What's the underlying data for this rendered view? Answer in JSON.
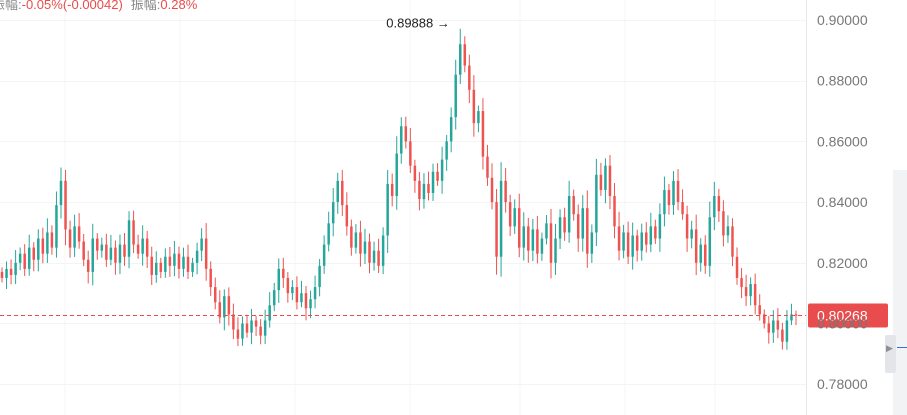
{
  "info_bar": {
    "change_label": "振幅:",
    "change_value": "-0.05%(-0.00042)",
    "amplitude_label": "振幅:",
    "amplitude_value": "0.28%"
  },
  "chart_data": {
    "type": "candlestick",
    "ylim": [
      0.774,
      0.905
    ],
    "y_ticks": [
      "0.90000",
      "0.88000",
      "0.86000",
      "0.84000",
      "0.82000",
      "0.80000",
      "0.78000"
    ],
    "y_tick_values": [
      0.9,
      0.88,
      0.86,
      0.84,
      0.82,
      0.8,
      0.78
    ],
    "grid": true,
    "current_price": {
      "label": "0.80268",
      "value": 0.80268
    },
    "high_annotation": {
      "label": "0.89888",
      "value": 0.89888
    },
    "colors": {
      "up": "#26a69a",
      "down": "#ef5350",
      "price_tag": "#e84c4c",
      "axis_text": "#777777",
      "grid": "#f3f4f6"
    },
    "closes": [
      0.815,
      0.818,
      0.816,
      0.82,
      0.823,
      0.818,
      0.825,
      0.821,
      0.828,
      0.823,
      0.83,
      0.825,
      0.839,
      0.847,
      0.831,
      0.825,
      0.832,
      0.827,
      0.821,
      0.817,
      0.828,
      0.824,
      0.826,
      0.821,
      0.825,
      0.82,
      0.826,
      0.822,
      0.834,
      0.826,
      0.823,
      0.828,
      0.822,
      0.816,
      0.82,
      0.817,
      0.822,
      0.819,
      0.823,
      0.818,
      0.822,
      0.817,
      0.82,
      0.824,
      0.828,
      0.818,
      0.812,
      0.807,
      0.802,
      0.809,
      0.803,
      0.798,
      0.795,
      0.8,
      0.797,
      0.801,
      0.799,
      0.796,
      0.801,
      0.806,
      0.811,
      0.818,
      0.815,
      0.81,
      0.812,
      0.807,
      0.81,
      0.805,
      0.808,
      0.812,
      0.819,
      0.826,
      0.833,
      0.84,
      0.847,
      0.839,
      0.832,
      0.825,
      0.83,
      0.823,
      0.827,
      0.82,
      0.824,
      0.819,
      0.829,
      0.846,
      0.842,
      0.856,
      0.865,
      0.86,
      0.852,
      0.847,
      0.841,
      0.846,
      0.843,
      0.85,
      0.847,
      0.854,
      0.86,
      0.868,
      0.882,
      0.892,
      0.885,
      0.877,
      0.866,
      0.87,
      0.855,
      0.848,
      0.84,
      0.822,
      0.847,
      0.84,
      0.832,
      0.838,
      0.825,
      0.832,
      0.824,
      0.831,
      0.823,
      0.828,
      0.833,
      0.82,
      0.828,
      0.835,
      0.83,
      0.842,
      0.836,
      0.828,
      0.838,
      0.823,
      0.83,
      0.849,
      0.844,
      0.852,
      0.842,
      0.832,
      0.824,
      0.83,
      0.822,
      0.829,
      0.824,
      0.83,
      0.826,
      0.832,
      0.828,
      0.836,
      0.844,
      0.839,
      0.847,
      0.84,
      0.836,
      0.828,
      0.831,
      0.82,
      0.826,
      0.819,
      0.835,
      0.842,
      0.837,
      0.829,
      0.832,
      0.822,
      0.815,
      0.812,
      0.809,
      0.813,
      0.806,
      0.803,
      0.8,
      0.797,
      0.801,
      0.798,
      0.794,
      0.801,
      0.803,
      0.8027
    ]
  }
}
